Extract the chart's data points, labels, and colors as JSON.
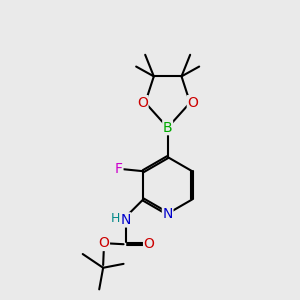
{
  "bg_color": "#eaeaea",
  "bond_color": "#000000",
  "bond_width": 1.5,
  "atom_colors": {
    "N": "#0000cc",
    "O": "#cc0000",
    "B": "#00aa00",
    "F": "#cc00cc",
    "H": "#008888",
    "C": "#000000"
  },
  "font_size": 9.5
}
